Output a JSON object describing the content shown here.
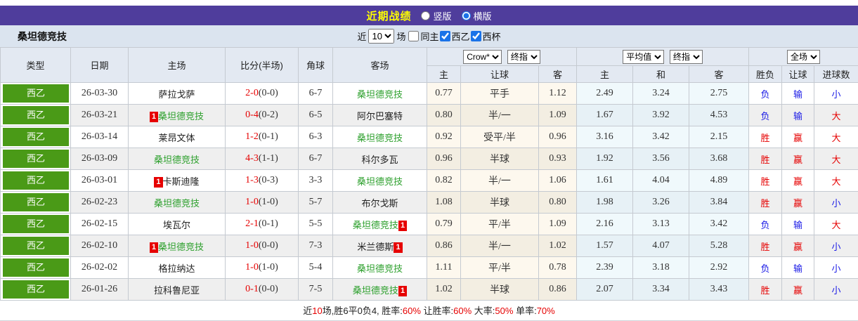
{
  "colors": {
    "header_purple": "#4f3d9c",
    "title_yellow": "#ffff00",
    "league_green": "#4a9a17",
    "team_green": "#2da02d",
    "win_red": "#e60000",
    "loss_blue": "#1a1ae6"
  },
  "titlebar": {
    "title": "近期战绩",
    "radios": [
      {
        "label": "竖版",
        "selected": false
      },
      {
        "label": "横版",
        "selected": true
      }
    ]
  },
  "filterbar": {
    "team_name": "桑坦德竞技",
    "near_label": "近",
    "count_value": "10",
    "matches_label": "场",
    "checkboxes": [
      {
        "label": "同主",
        "checked": false
      },
      {
        "label": "西乙",
        "checked": true
      },
      {
        "label": "西杯",
        "checked": true
      }
    ]
  },
  "table": {
    "col_headers": {
      "type": "类型",
      "date": "日期",
      "home": "主场",
      "score": "比分(半场)",
      "corners": "角球",
      "away": "客场",
      "group1_cols": [
        "主",
        "让球",
        "客"
      ],
      "group2_cols": [
        "主",
        "和",
        "客"
      ],
      "group3_cols": [
        "胜负",
        "让球",
        "进球数"
      ]
    },
    "selects": {
      "odds_company": "Crow*",
      "odds_time1": "终指",
      "europe_avg": "平均值",
      "odds_time2": "终指",
      "scope": "全场"
    },
    "result_colors": {
      "胜": "red",
      "负": "blue",
      "赢": "red",
      "输": "blue",
      "大": "red",
      "小": "blue"
    },
    "rows": [
      {
        "type": "西乙",
        "date": "26-03-30",
        "home": {
          "name": "萨拉戈萨",
          "green": false,
          "card": ""
        },
        "score": "2-0",
        "half": "(0-0)",
        "corners": "6-7",
        "away": {
          "name": "桑坦德竞技",
          "green": true,
          "card": ""
        },
        "odds1": [
          "0.77",
          "平手",
          "1.12"
        ],
        "odds2": [
          "2.49",
          "3.24",
          "2.75"
        ],
        "results": [
          "负",
          "输",
          "小"
        ]
      },
      {
        "type": "西乙",
        "date": "26-03-21",
        "home": {
          "name": "桑坦德竞技",
          "green": true,
          "card": "before"
        },
        "score": "0-4",
        "half": "(0-2)",
        "corners": "6-5",
        "away": {
          "name": "阿尔巴塞特",
          "green": false,
          "card": ""
        },
        "odds1": [
          "0.80",
          "半/一",
          "1.09"
        ],
        "odds2": [
          "1.67",
          "3.92",
          "4.53"
        ],
        "results": [
          "负",
          "输",
          "大"
        ]
      },
      {
        "type": "西乙",
        "date": "26-03-14",
        "home": {
          "name": "莱昂文体",
          "green": false,
          "card": ""
        },
        "score": "1-2",
        "half": "(0-1)",
        "corners": "6-3",
        "away": {
          "name": "桑坦德竞技",
          "green": true,
          "card": ""
        },
        "odds1": [
          "0.92",
          "受平/半",
          "0.96"
        ],
        "odds2": [
          "3.16",
          "3.42",
          "2.15"
        ],
        "results": [
          "胜",
          "赢",
          "大"
        ]
      },
      {
        "type": "西乙",
        "date": "26-03-09",
        "home": {
          "name": "桑坦德竞技",
          "green": true,
          "card": ""
        },
        "score": "4-3",
        "half": "(1-1)",
        "corners": "6-7",
        "away": {
          "name": "科尔多瓦",
          "green": false,
          "card": ""
        },
        "odds1": [
          "0.96",
          "半球",
          "0.93"
        ],
        "odds2": [
          "1.92",
          "3.56",
          "3.68"
        ],
        "results": [
          "胜",
          "赢",
          "大"
        ]
      },
      {
        "type": "西乙",
        "date": "26-03-01",
        "home": {
          "name": "卡斯迪隆",
          "green": false,
          "card": "before"
        },
        "score": "1-3",
        "half": "(0-3)",
        "corners": "3-3",
        "away": {
          "name": "桑坦德竞技",
          "green": true,
          "card": ""
        },
        "odds1": [
          "0.82",
          "半/一",
          "1.06"
        ],
        "odds2": [
          "1.61",
          "4.04",
          "4.89"
        ],
        "results": [
          "胜",
          "赢",
          "大"
        ]
      },
      {
        "type": "西乙",
        "date": "26-02-23",
        "home": {
          "name": "桑坦德竞技",
          "green": true,
          "card": ""
        },
        "score": "1-0",
        "half": "(1-0)",
        "corners": "5-7",
        "away": {
          "name": "布尔戈斯",
          "green": false,
          "card": ""
        },
        "odds1": [
          "1.08",
          "半球",
          "0.80"
        ],
        "odds2": [
          "1.98",
          "3.26",
          "3.84"
        ],
        "results": [
          "胜",
          "赢",
          "小"
        ]
      },
      {
        "type": "西乙",
        "date": "26-02-15",
        "home": {
          "name": "埃瓦尔",
          "green": false,
          "card": ""
        },
        "score": "2-1",
        "half": "(0-1)",
        "corners": "5-5",
        "away": {
          "name": "桑坦德竞技",
          "green": true,
          "card": "after"
        },
        "odds1": [
          "0.79",
          "平/半",
          "1.09"
        ],
        "odds2": [
          "2.16",
          "3.13",
          "3.42"
        ],
        "results": [
          "负",
          "输",
          "大"
        ]
      },
      {
        "type": "西乙",
        "date": "26-02-10",
        "home": {
          "name": "桑坦德竞技",
          "green": true,
          "card": "before"
        },
        "score": "1-0",
        "half": "(0-0)",
        "corners": "7-3",
        "away": {
          "name": "米兰德斯",
          "green": false,
          "card": "after"
        },
        "odds1": [
          "0.86",
          "半/一",
          "1.02"
        ],
        "odds2": [
          "1.57",
          "4.07",
          "5.28"
        ],
        "results": [
          "胜",
          "赢",
          "小"
        ]
      },
      {
        "type": "西乙",
        "date": "26-02-02",
        "home": {
          "name": "格拉纳达",
          "green": false,
          "card": ""
        },
        "score": "1-0",
        "half": "(1-0)",
        "corners": "5-4",
        "away": {
          "name": "桑坦德竞技",
          "green": true,
          "card": ""
        },
        "odds1": [
          "1.11",
          "平/半",
          "0.78"
        ],
        "odds2": [
          "2.39",
          "3.18",
          "2.92"
        ],
        "results": [
          "负",
          "输",
          "小"
        ]
      },
      {
        "type": "西乙",
        "date": "26-01-26",
        "home": {
          "name": "拉科鲁尼亚",
          "green": false,
          "card": ""
        },
        "score": "0-1",
        "half": "(0-0)",
        "corners": "7-5",
        "away": {
          "name": "桑坦德竞技",
          "green": true,
          "card": "after"
        },
        "odds1": [
          "1.02",
          "半球",
          "0.86"
        ],
        "odds2": [
          "2.07",
          "3.34",
          "3.43"
        ],
        "results": [
          "胜",
          "赢",
          "小"
        ]
      }
    ]
  },
  "footer": {
    "segments": [
      {
        "text": "近",
        "color": "dark"
      },
      {
        "text": "10",
        "color": "red"
      },
      {
        "text": "场,胜6平0负4, 胜率:",
        "color": "dark"
      },
      {
        "text": "60%",
        "color": "red"
      },
      {
        "text": " 让胜率:",
        "color": "dark"
      },
      {
        "text": "60%",
        "color": "red"
      },
      {
        "text": " 大率:",
        "color": "dark"
      },
      {
        "text": "50%",
        "color": "red"
      },
      {
        "text": " 单率:",
        "color": "dark"
      },
      {
        "text": "70%",
        "color": "red"
      }
    ]
  }
}
